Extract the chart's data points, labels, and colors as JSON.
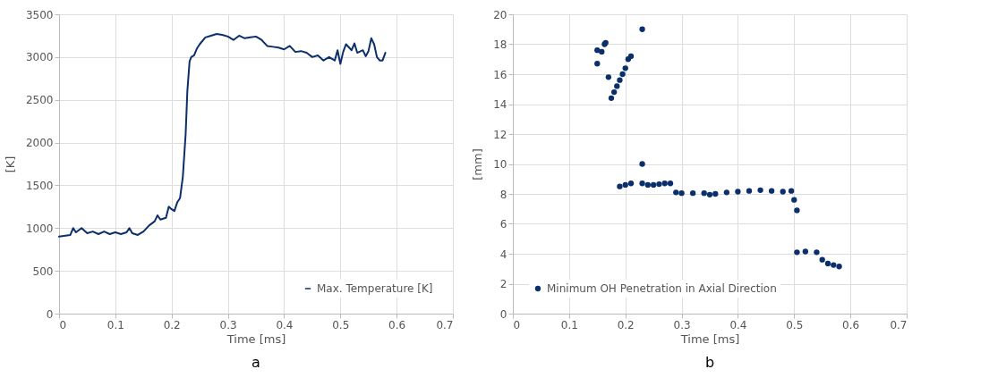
{
  "chart_data": [
    {
      "type": "line",
      "xlabel": "Time [ms]",
      "ylabel": "[K]",
      "xlim": [
        0,
        0.7
      ],
      "xticks": [
        0,
        0.1,
        0.2,
        0.3,
        0.4,
        0.5,
        0.6,
        0.7
      ],
      "ylim": [
        0,
        3500
      ],
      "yticks": [
        0,
        500,
        1000,
        1500,
        2000,
        2500,
        3000,
        3500
      ],
      "grid": true,
      "legend": "bottom right",
      "annotations": [
        "a"
      ],
      "series": [
        {
          "name": "Max. Temperature [K]",
          "color": "#0b2f6b",
          "x": [
            0,
            0.02,
            0.025,
            0.03,
            0.04,
            0.05,
            0.06,
            0.07,
            0.08,
            0.09,
            0.1,
            0.11,
            0.12,
            0.125,
            0.13,
            0.14,
            0.15,
            0.16,
            0.17,
            0.175,
            0.18,
            0.19,
            0.195,
            0.2,
            0.205,
            0.21,
            0.215,
            0.22,
            0.225,
            0.228,
            0.232,
            0.235,
            0.24,
            0.245,
            0.25,
            0.26,
            0.27,
            0.28,
            0.29,
            0.3,
            0.31,
            0.32,
            0.33,
            0.34,
            0.35,
            0.36,
            0.37,
            0.38,
            0.39,
            0.4,
            0.41,
            0.42,
            0.43,
            0.44,
            0.45,
            0.46,
            0.47,
            0.48,
            0.49,
            0.495,
            0.5,
            0.505,
            0.51,
            0.52,
            0.525,
            0.53,
            0.54,
            0.545,
            0.55,
            0.555,
            0.56,
            0.565,
            0.57,
            0.575,
            0.58
          ],
          "values": [
            900,
            920,
            1000,
            950,
            1000,
            940,
            960,
            930,
            960,
            930,
            950,
            930,
            950,
            1000,
            940,
            920,
            960,
            1030,
            1080,
            1150,
            1100,
            1120,
            1250,
            1220,
            1200,
            1300,
            1350,
            1600,
            2100,
            2600,
            2950,
            3000,
            3020,
            3100,
            3150,
            3230,
            3250,
            3270,
            3260,
            3240,
            3200,
            3250,
            3220,
            3230,
            3240,
            3200,
            3130,
            3120,
            3110,
            3090,
            3130,
            3060,
            3070,
            3050,
            3000,
            3020,
            2960,
            3000,
            2960,
            3080,
            2920,
            3060,
            3150,
            3080,
            3160,
            3050,
            3080,
            3010,
            3070,
            3220,
            3150,
            3000,
            2960,
            2960,
            3050
          ]
        }
      ]
    },
    {
      "type": "scatter",
      "xlabel": "Time [ms]",
      "ylabel": "[mm]",
      "xlim": [
        0,
        0.7
      ],
      "xticks": [
        0,
        0.1,
        0.2,
        0.3,
        0.4,
        0.5,
        0.6,
        0.7
      ],
      "ylim": [
        0,
        20
      ],
      "yticks": [
        0,
        2,
        4,
        6,
        8,
        10,
        12,
        14,
        16,
        18,
        20
      ],
      "grid": true,
      "legend": "bottom left",
      "marker": "circle",
      "annotations": [
        "b"
      ],
      "series": [
        {
          "name": "Minimum OH Penetration in Axial Direction",
          "color": "#0b2f6b",
          "x": [
            0.15,
            0.15,
            0.158,
            0.163,
            0.165,
            0.17,
            0.175,
            0.18,
            0.185,
            0.19,
            0.195,
            0.2,
            0.205,
            0.21,
            0.23,
            0.19,
            0.2,
            0.21,
            0.23,
            0.23,
            0.24,
            0.25,
            0.26,
            0.27,
            0.28,
            0.29,
            0.3,
            0.32,
            0.34,
            0.35,
            0.36,
            0.38,
            0.4,
            0.42,
            0.44,
            0.46,
            0.48,
            0.495,
            0.5,
            0.505,
            0.505,
            0.52,
            0.54,
            0.55,
            0.56,
            0.57,
            0.58
          ],
          "values": [
            16.7,
            17.6,
            17.5,
            18.0,
            18.1,
            15.8,
            14.4,
            14.8,
            15.2,
            15.6,
            16.0,
            16.4,
            17.0,
            17.2,
            19.0,
            8.5,
            8.6,
            8.7,
            10.0,
            8.7,
            8.6,
            8.6,
            8.65,
            8.7,
            8.7,
            8.1,
            8.05,
            8.05,
            8.05,
            7.95,
            8.0,
            8.1,
            8.15,
            8.2,
            8.25,
            8.2,
            8.15,
            8.2,
            7.6,
            6.9,
            4.1,
            4.15,
            4.1,
            3.6,
            3.35,
            3.25,
            3.15
          ]
        }
      ]
    }
  ]
}
